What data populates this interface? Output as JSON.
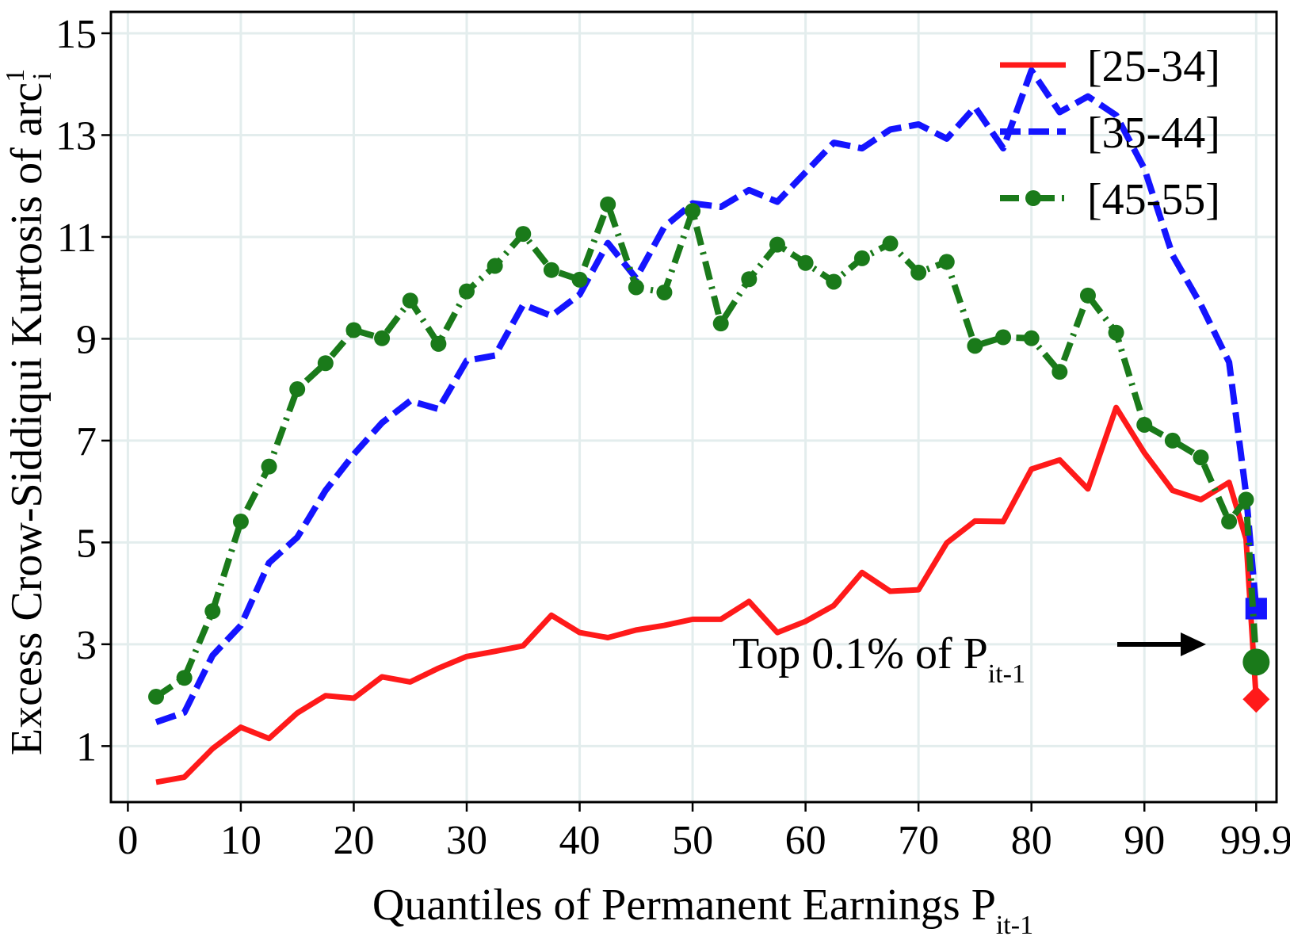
{
  "chart_data": {
    "type": "line",
    "y_label": {
      "text": "Excess Crow-Siddiqui Kurtosis of arc",
      "superscript": "1",
      "subscript": "i"
    },
    "x_label": {
      "text": "Quantiles of Permanent Earnings P",
      "subscript": "it-1"
    },
    "annotation": {
      "text": "Top 0.1% of P",
      "subscript": "it-1"
    },
    "xlim": [
      -1.5,
      101.7
    ],
    "ylim": [
      -0.1,
      15.42
    ],
    "xticks": [
      0,
      10,
      20,
      30,
      40,
      50,
      60,
      70,
      80,
      90,
      99.9
    ],
    "yticks": [
      1,
      3,
      5,
      7,
      9,
      11,
      13,
      15
    ],
    "grid": true,
    "legend": "upper right",
    "x": [
      2.5,
      5,
      7.5,
      10,
      12.5,
      15,
      17.5,
      20,
      22.5,
      25,
      27.5,
      30,
      32.5,
      35,
      37.5,
      40,
      42.5,
      45,
      47.5,
      50,
      52.5,
      55,
      57.5,
      60,
      62.5,
      65,
      67.5,
      70,
      72.5,
      75,
      77.5,
      80,
      82.5,
      85,
      87.5,
      90,
      92.5,
      95,
      97.5,
      99
    ],
    "top_x": 99.9,
    "series": [
      {
        "name": "[25-34]",
        "color": "#ff1a1a",
        "style": "solid",
        "marker": "diamond",
        "values": [
          0.29,
          0.39,
          0.95,
          1.37,
          1.15,
          1.65,
          1.99,
          1.94,
          2.36,
          2.26,
          2.53,
          2.76,
          2.86,
          2.97,
          3.57,
          3.23,
          3.13,
          3.28,
          3.37,
          3.49,
          3.49,
          3.84,
          3.23,
          3.45,
          3.76,
          4.41,
          4.04,
          4.07,
          4.99,
          5.42,
          5.41,
          6.44,
          6.62,
          6.05,
          7.65,
          6.76,
          6.02,
          5.84,
          6.18,
          5.07
        ],
        "top_value": 1.92
      },
      {
        "name": "[35-44]",
        "color": "#1414ff",
        "style": "dashed",
        "marker": "square",
        "values": [
          1.47,
          1.66,
          2.78,
          3.37,
          4.6,
          5.1,
          6.02,
          6.73,
          7.35,
          7.78,
          7.62,
          8.57,
          8.67,
          9.67,
          9.45,
          9.87,
          10.88,
          10.19,
          11.2,
          11.66,
          11.59,
          11.92,
          11.69,
          12.27,
          12.85,
          12.74,
          13.11,
          13.21,
          12.93,
          13.55,
          12.74,
          14.27,
          13.45,
          13.76,
          13.39,
          12.34,
          10.64,
          9.67,
          8.54,
          5.96
        ],
        "top_value": 3.7
      },
      {
        "name": "[45-55]",
        "color": "#1a7a1a",
        "style": "dashdot",
        "marker": "circle",
        "values": [
          1.97,
          2.34,
          3.65,
          5.41,
          6.49,
          8.01,
          8.52,
          9.17,
          9.01,
          9.75,
          8.9,
          9.93,
          10.43,
          11.06,
          10.35,
          10.16,
          11.64,
          10.01,
          9.91,
          11.51,
          9.3,
          10.17,
          10.85,
          10.49,
          10.12,
          10.58,
          10.87,
          10.3,
          10.51,
          8.86,
          9.03,
          9.01,
          8.35,
          9.85,
          9.12,
          7.31,
          7.0,
          6.67,
          5.41,
          5.84
        ],
        "top_value": 2.65
      }
    ]
  }
}
